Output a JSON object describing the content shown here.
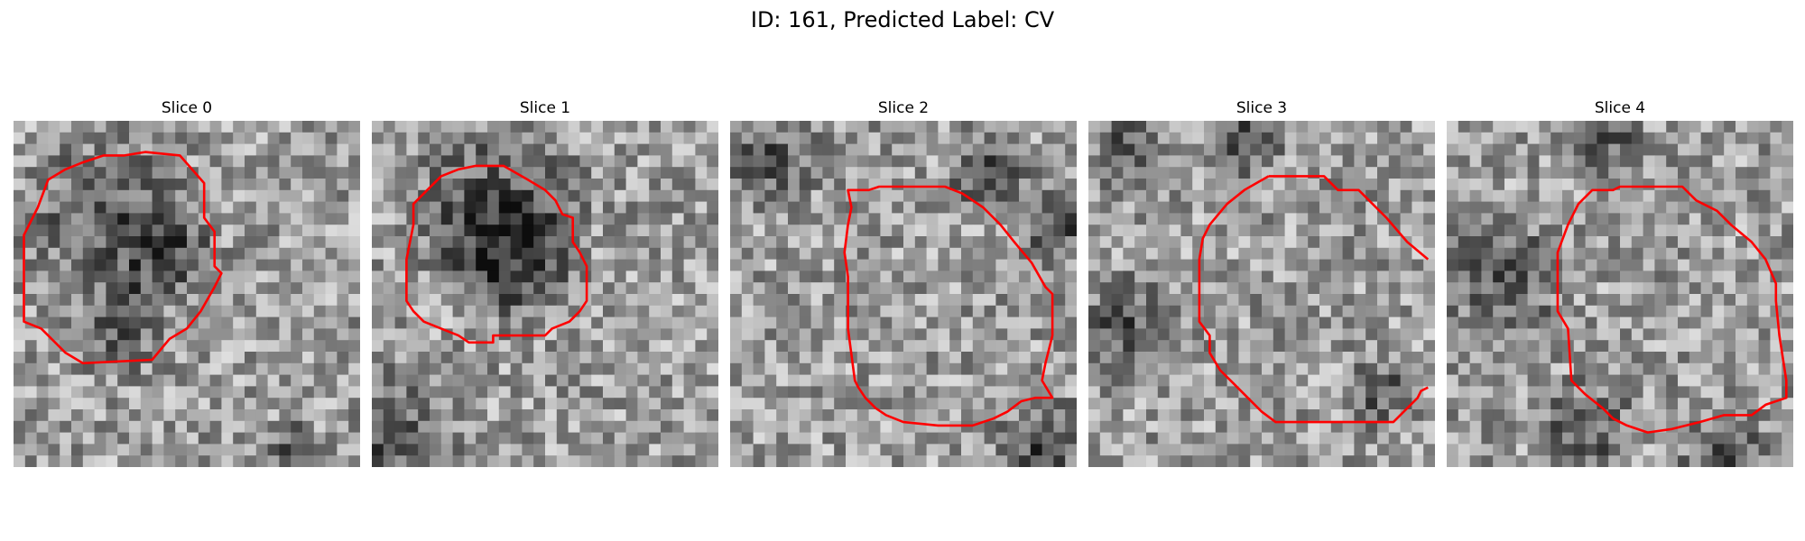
{
  "figure": {
    "title": "ID: 161, Predicted Label: CV"
  },
  "colors": {
    "contour": "#ff0000",
    "background": "#ffffff"
  },
  "panels": [
    {
      "title": "Slice 0",
      "dark_regions": [
        [
          0.27,
          0.28,
          0.55
        ],
        [
          0.45,
          0.4,
          0.35
        ],
        [
          0.3,
          0.6,
          0.3
        ],
        [
          0.8,
          0.95,
          0.2
        ]
      ],
      "contour": [
        [
          0.32,
          0.1
        ],
        [
          0.38,
          0.09
        ],
        [
          0.48,
          0.1
        ],
        [
          0.55,
          0.18
        ],
        [
          0.55,
          0.28
        ],
        [
          0.58,
          0.32
        ],
        [
          0.58,
          0.42
        ],
        [
          0.6,
          0.44
        ],
        [
          0.58,
          0.48
        ],
        [
          0.54,
          0.55
        ],
        [
          0.5,
          0.6
        ],
        [
          0.45,
          0.63
        ],
        [
          0.4,
          0.69
        ],
        [
          0.2,
          0.7
        ],
        [
          0.15,
          0.67
        ],
        [
          0.08,
          0.6
        ],
        [
          0.03,
          0.58
        ],
        [
          0.03,
          0.33
        ],
        [
          0.07,
          0.25
        ],
        [
          0.1,
          0.17
        ],
        [
          0.15,
          0.14
        ],
        [
          0.2,
          0.12
        ],
        [
          0.26,
          0.1
        ]
      ]
    },
    {
      "title": "Slice 1",
      "dark_regions": [
        [
          0.35,
          0.25,
          0.6
        ],
        [
          0.4,
          0.4,
          0.45
        ],
        [
          0.05,
          0.95,
          0.5
        ]
      ],
      "contour": [
        [
          0.15,
          0.21
        ],
        [
          0.2,
          0.16
        ],
        [
          0.25,
          0.14
        ],
        [
          0.3,
          0.13
        ],
        [
          0.38,
          0.13
        ],
        [
          0.45,
          0.17
        ],
        [
          0.5,
          0.2
        ],
        [
          0.53,
          0.23
        ],
        [
          0.55,
          0.27
        ],
        [
          0.58,
          0.28
        ],
        [
          0.58,
          0.35
        ],
        [
          0.6,
          0.38
        ],
        [
          0.62,
          0.42
        ],
        [
          0.62,
          0.52
        ],
        [
          0.6,
          0.55
        ],
        [
          0.57,
          0.58
        ],
        [
          0.52,
          0.6
        ],
        [
          0.5,
          0.62
        ],
        [
          0.35,
          0.62
        ],
        [
          0.35,
          0.64
        ],
        [
          0.28,
          0.64
        ],
        [
          0.25,
          0.62
        ],
        [
          0.2,
          0.6
        ],
        [
          0.15,
          0.58
        ],
        [
          0.12,
          0.55
        ],
        [
          0.1,
          0.52
        ],
        [
          0.1,
          0.4
        ],
        [
          0.12,
          0.3
        ],
        [
          0.12,
          0.24
        ]
      ]
    },
    {
      "title": "Slice 2",
      "dark_regions": [
        [
          0.1,
          0.1,
          0.35
        ],
        [
          0.75,
          0.15,
          0.3
        ],
        [
          0.95,
          0.3,
          0.3
        ],
        [
          0.9,
          0.95,
          0.35
        ]
      ],
      "contour": [
        [
          0.34,
          0.2
        ],
        [
          0.4,
          0.2
        ],
        [
          0.43,
          0.19
        ],
        [
          0.5,
          0.19
        ],
        [
          0.62,
          0.19
        ],
        [
          0.67,
          0.21
        ],
        [
          0.73,
          0.25
        ],
        [
          0.78,
          0.3
        ],
        [
          0.82,
          0.35
        ],
        [
          0.87,
          0.41
        ],
        [
          0.91,
          0.48
        ],
        [
          0.93,
          0.5
        ],
        [
          0.93,
          0.62
        ],
        [
          0.91,
          0.7
        ],
        [
          0.9,
          0.75
        ],
        [
          0.93,
          0.8
        ],
        [
          0.88,
          0.8
        ],
        [
          0.84,
          0.81
        ],
        [
          0.8,
          0.84
        ],
        [
          0.76,
          0.86
        ],
        [
          0.7,
          0.88
        ],
        [
          0.6,
          0.88
        ],
        [
          0.5,
          0.87
        ],
        [
          0.45,
          0.85
        ],
        [
          0.42,
          0.83
        ],
        [
          0.39,
          0.8
        ],
        [
          0.37,
          0.77
        ],
        [
          0.36,
          0.75
        ],
        [
          0.34,
          0.6
        ],
        [
          0.34,
          0.45
        ],
        [
          0.33,
          0.38
        ],
        [
          0.34,
          0.3
        ],
        [
          0.35,
          0.25
        ]
      ],
      "contour_mode": "custom"
    },
    {
      "title": "Slice 3",
      "dark_regions": [
        [
          0.1,
          0.6,
          0.35
        ],
        [
          0.1,
          0.08,
          0.25
        ],
        [
          0.45,
          0.05,
          0.25
        ],
        [
          0.85,
          0.78,
          0.25
        ]
      ],
      "contour": [
        [
          0.52,
          0.16
        ],
        [
          0.68,
          0.16
        ],
        [
          0.72,
          0.2
        ],
        [
          0.78,
          0.2
        ],
        [
          0.86,
          0.28
        ],
        [
          0.92,
          0.35
        ],
        [
          0.98,
          0.4
        ]
      ],
      "contour_mode": "custom"
    },
    {
      "title": "Slice 4",
      "dark_regions": [
        [
          0.15,
          0.45,
          0.45
        ],
        [
          0.45,
          0.05,
          0.3
        ],
        [
          0.4,
          0.9,
          0.35
        ],
        [
          0.8,
          0.95,
          0.3
        ]
      ],
      "contour": [
        [
          0.38,
          0.24
        ],
        [
          0.42,
          0.2
        ],
        [
          0.48,
          0.2
        ],
        [
          0.5,
          0.19
        ],
        [
          0.58,
          0.19
        ],
        [
          0.68,
          0.19
        ],
        [
          0.72,
          0.23
        ],
        [
          0.78,
          0.26
        ],
        [
          0.82,
          0.3
        ],
        [
          0.88,
          0.35
        ],
        [
          0.92,
          0.4
        ],
        [
          0.95,
          0.47
        ],
        [
          0.95,
          0.52
        ],
        [
          0.96,
          0.62
        ],
        [
          0.98,
          0.75
        ],
        [
          0.98,
          0.8
        ],
        [
          0.92,
          0.82
        ],
        [
          0.88,
          0.85
        ],
        [
          0.8,
          0.85
        ],
        [
          0.73,
          0.87
        ],
        [
          0.65,
          0.89
        ],
        [
          0.58,
          0.9
        ],
        [
          0.52,
          0.88
        ],
        [
          0.48,
          0.86
        ],
        [
          0.45,
          0.83
        ],
        [
          0.4,
          0.79
        ],
        [
          0.36,
          0.75
        ],
        [
          0.35,
          0.6
        ],
        [
          0.32,
          0.55
        ],
        [
          0.32,
          0.38
        ],
        [
          0.35,
          0.3
        ]
      ],
      "contour_mode": "custom"
    }
  ]
}
